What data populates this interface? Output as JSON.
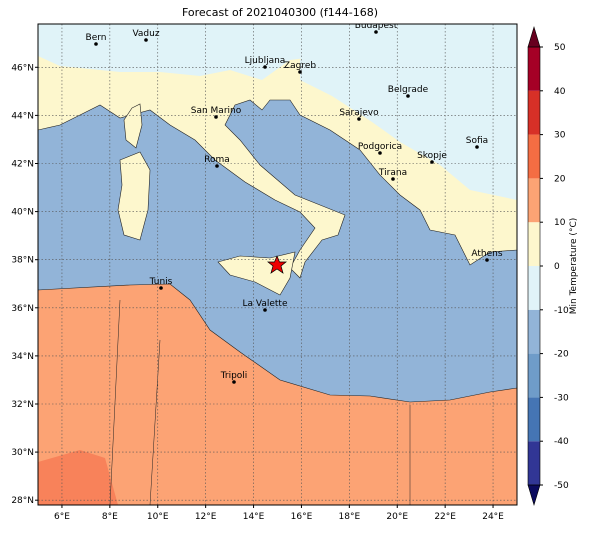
{
  "title": "Forecast of 2021040300 (f144-168)",
  "map": {
    "xlim": [
      5,
      25
    ],
    "ylim": [
      27.8,
      47.8
    ],
    "grid": true,
    "xticks": [
      {
        "value": 6,
        "label": "6°E"
      },
      {
        "value": 8,
        "label": "8°E"
      },
      {
        "value": 10,
        "label": "10°E"
      },
      {
        "value": 12,
        "label": "12°E"
      },
      {
        "value": 14,
        "label": "14°E"
      },
      {
        "value": 16,
        "label": "16°E"
      },
      {
        "value": 18,
        "label": "18°E"
      },
      {
        "value": 20,
        "label": "20°E"
      },
      {
        "value": 22,
        "label": "22°E"
      },
      {
        "value": 24,
        "label": "24°E"
      }
    ],
    "yticks": [
      {
        "value": 28,
        "label": "28°N"
      },
      {
        "value": 30,
        "label": "30°N"
      },
      {
        "value": 32,
        "label": "32°N"
      },
      {
        "value": 34,
        "label": "34°N"
      },
      {
        "value": 36,
        "label": "36°N"
      },
      {
        "value": 38,
        "label": "38°N"
      },
      {
        "value": 40,
        "label": "40°N"
      },
      {
        "value": 42,
        "label": "42°N"
      },
      {
        "value": 44,
        "label": "44°N"
      },
      {
        "value": 46,
        "label": "46°N"
      }
    ],
    "cities": [
      "Bern",
      "Vaduz",
      "Budapest",
      "Ljubljana",
      "Zagreb",
      "Belgrade",
      "San Marino",
      "Sarajevo",
      "Sofia",
      "Podgorica",
      "Skopje",
      "Roma",
      "Tirana",
      "Athens",
      "Tunis",
      "La Valette",
      "Tripoli"
    ]
  },
  "colorbar": {
    "label": "Min Temperature (°C)",
    "lim": [
      -50,
      50
    ],
    "ticks": [
      -50,
      -40,
      -30,
      -20,
      -10,
      0,
      10,
      20,
      30,
      40,
      50
    ],
    "colors": [
      "#313695",
      "#4575b4",
      "#6f9cc9",
      "#92b4d8",
      "#e0f3f8",
      "#fdf7cd",
      "#fca374",
      "#f46d43",
      "#d73027",
      "#a50026"
    ]
  }
}
